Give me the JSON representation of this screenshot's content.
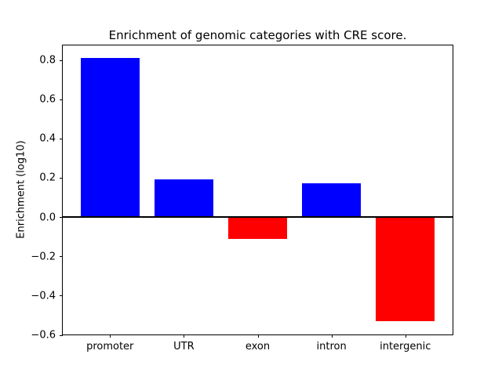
{
  "figure": {
    "title": "Enrichment of genomic categories with CRE score.",
    "ylabel": "Enrichment (log10)"
  },
  "chart_data": {
    "type": "bar",
    "title": "Enrichment of genomic categories with CRE score.",
    "xlabel": "",
    "ylabel": "Enrichment (log10)",
    "categories": [
      "promoter",
      "UTR",
      "exon",
      "intron",
      "intergenic"
    ],
    "values": [
      0.81,
      0.19,
      -0.11,
      0.17,
      -0.53
    ],
    "colors": {
      "positive_bar": "#0000ff",
      "negative_bar": "#ff0000",
      "axis": "#000000",
      "background": "#ffffff"
    },
    "yticks": [
      0.8,
      0.6,
      0.4,
      0.2,
      0.0,
      -0.2,
      -0.4,
      -0.6
    ],
    "ytick_labels": [
      "0.8",
      "0.6",
      "0.4",
      "0.2",
      "0.0",
      "−0.2",
      "−0.4",
      "−0.6"
    ],
    "ylim": [
      -0.598,
      0.874
    ],
    "xlim": [
      -0.64,
      4.64
    ],
    "bar_width_fraction": 0.8,
    "grid": false,
    "legend": null,
    "zero_line": true,
    "box_spines": true
  }
}
